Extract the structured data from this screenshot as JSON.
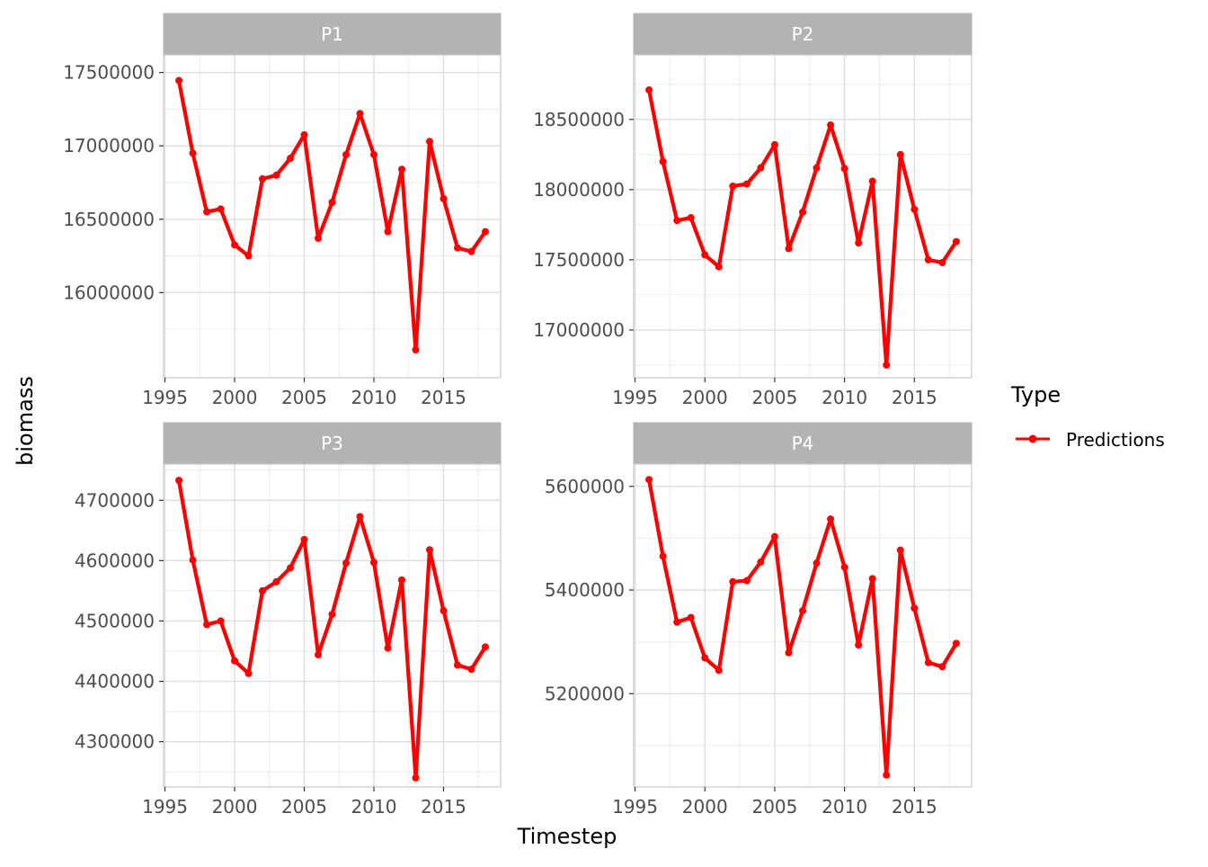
{
  "chart_data": {
    "type": "line",
    "xlabel": "Timestep",
    "ylabel": "biomass",
    "line_color": "#ff0000",
    "strip_color": "#b3b3b3",
    "grid": true,
    "legend": {
      "title": "Type",
      "placement": "right",
      "entries": [
        "Predictions"
      ]
    },
    "x_ticks": [
      1995,
      2000,
      2005,
      2010,
      2015
    ],
    "xlim": [
      1994.9,
      2019.1
    ],
    "x": [
      1996,
      1997,
      1998,
      1999,
      2000,
      2001,
      2002,
      2003,
      2004,
      2005,
      2006,
      2007,
      2008,
      2009,
      2010,
      2011,
      2012,
      2013,
      2014,
      2015,
      2016,
      2017,
      2018
    ],
    "panels": [
      {
        "title": "P1",
        "ylim": [
          15420000,
          17620000
        ],
        "y_ticks": [
          16000000,
          16500000,
          17000000,
          17500000
        ],
        "y_tick_labels": [
          "16000000",
          "16500000",
          "17000000",
          "17500000"
        ],
        "values": [
          17445000,
          16950000,
          16550000,
          16570000,
          16325000,
          16250000,
          16775000,
          16800000,
          16915000,
          17075000,
          16370000,
          16615000,
          16940000,
          17220000,
          16940000,
          16415000,
          16840000,
          15610000,
          17030000,
          16640000,
          16305000,
          16280000,
          16415000
        ]
      },
      {
        "title": "P2",
        "ylim": [
          16660000,
          18960000
        ],
        "y_ticks": [
          17000000,
          17500000,
          18000000,
          18500000
        ],
        "y_tick_labels": [
          "17000000",
          "17500000",
          "18000000",
          "18500000"
        ],
        "values": [
          18710000,
          18200000,
          17780000,
          17800000,
          17535000,
          17450000,
          18025000,
          18040000,
          18155000,
          18320000,
          17580000,
          17840000,
          18155000,
          18460000,
          18150000,
          17620000,
          18060000,
          16750000,
          18250000,
          17860000,
          17500000,
          17480000,
          17630000
        ]
      },
      {
        "title": "P3",
        "ylim": [
          4225000,
          4760000
        ],
        "y_ticks": [
          4300000,
          4400000,
          4500000,
          4600000,
          4700000
        ],
        "y_tick_labels": [
          "4300000",
          "4400000",
          "4500000",
          "4600000",
          "4700000"
        ],
        "values": [
          4733000,
          4601000,
          4494000,
          4500000,
          4434000,
          4413000,
          4550000,
          4565000,
          4588000,
          4635000,
          4444000,
          4511000,
          4596000,
          4673000,
          4597000,
          4455000,
          4568000,
          4240000,
          4618000,
          4517000,
          4427000,
          4420000,
          4457000
        ]
      },
      {
        "title": "P4",
        "ylim": [
          5020000,
          5643000
        ],
        "y_ticks": [
          5200000,
          5400000,
          5600000
        ],
        "y_tick_labels": [
          "5200000",
          "5400000",
          "5600000"
        ],
        "values": [
          5613000,
          5465000,
          5338000,
          5347000,
          5269000,
          5245000,
          5416000,
          5418000,
          5454000,
          5503000,
          5279000,
          5360000,
          5452000,
          5537000,
          5444000,
          5294000,
          5422000,
          5043000,
          5477000,
          5365000,
          5260000,
          5252000,
          5297000
        ]
      }
    ]
  }
}
